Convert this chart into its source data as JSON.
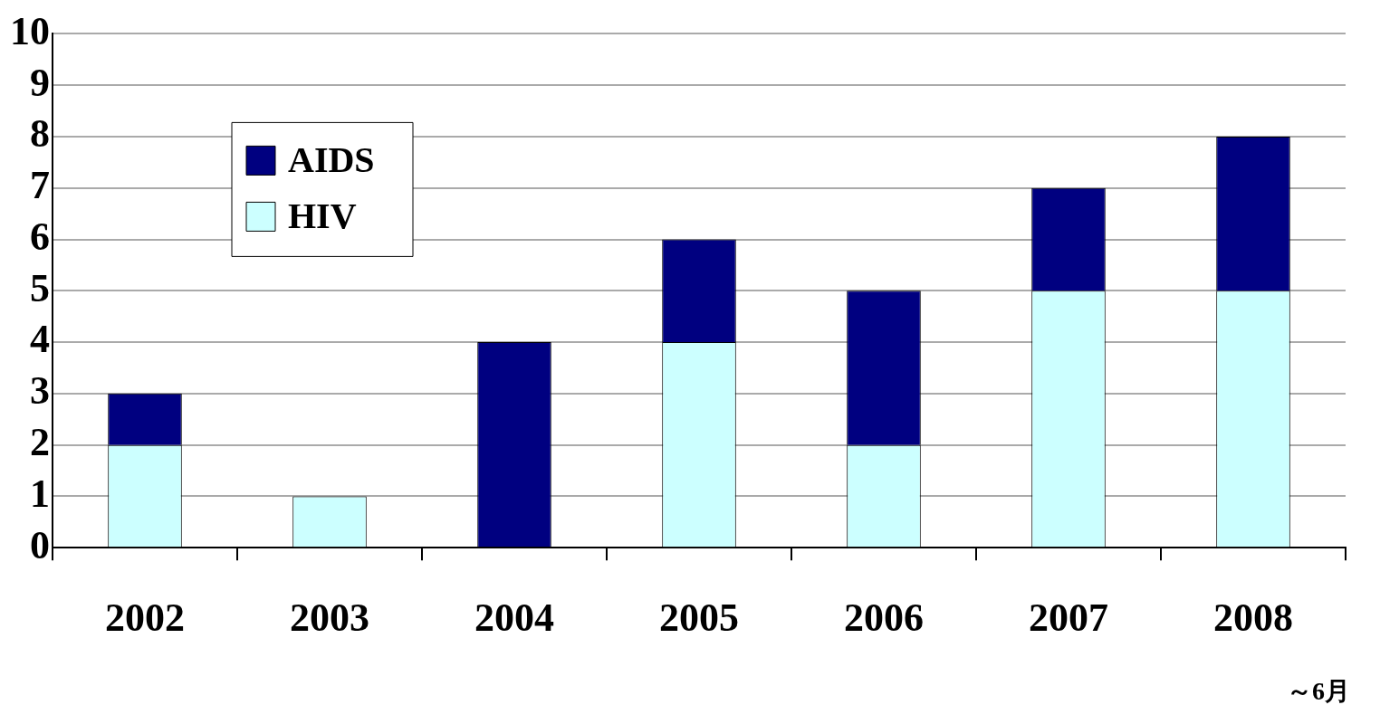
{
  "chart_data": {
    "type": "bar",
    "stacked": true,
    "categories": [
      "2002",
      "2003",
      "2004",
      "2005",
      "2006",
      "2007",
      "2008"
    ],
    "series": [
      {
        "name": "HIV",
        "color": "#ccffff",
        "values": [
          2,
          1,
          0,
          4,
          2,
          5,
          5
        ]
      },
      {
        "name": "AIDS",
        "color": "#000080",
        "values": [
          1,
          0,
          4,
          2,
          3,
          2,
          3
        ]
      }
    ],
    "ylim": [
      0,
      10
    ],
    "yticks": [
      0,
      1,
      2,
      3,
      4,
      5,
      6,
      7,
      8,
      9,
      10
    ],
    "grid": "y",
    "legend": "top left",
    "annotations": [
      "～6月"
    ]
  }
}
